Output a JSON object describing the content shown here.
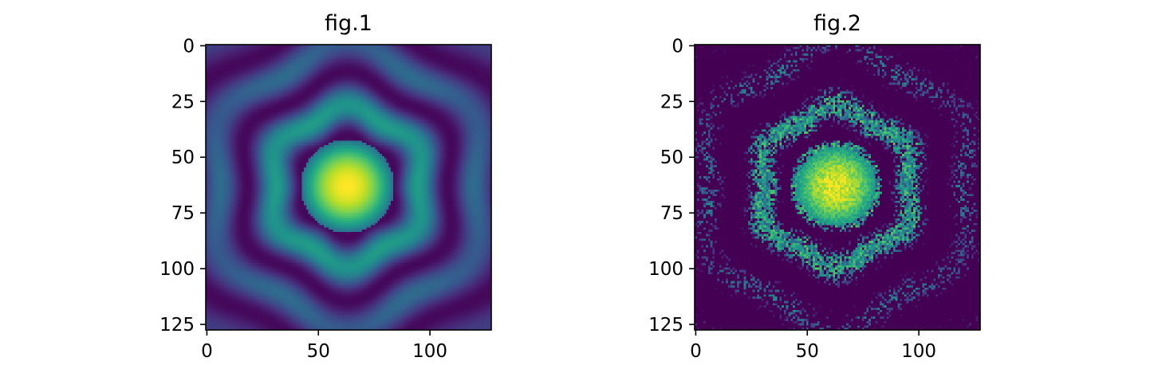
{
  "chart_data": [
    {
      "type": "heatmap",
      "title": "fig.1",
      "colormap": "viridis",
      "image_size": [
        128,
        128
      ],
      "xlim": [
        -0.5,
        127.5
      ],
      "ylim": [
        127.5,
        -0.5
      ],
      "y_inverted": true,
      "xticks": [
        0,
        50,
        100
      ],
      "xtick_labels": [
        "0",
        "50",
        "100"
      ],
      "yticks": [
        0,
        25,
        50,
        75,
        100,
        125
      ],
      "ytick_labels": [
        "0",
        "25",
        "50",
        "75",
        "100",
        "125"
      ],
      "center": [
        63,
        63
      ],
      "central_spot_radius": 21,
      "noise": false
    },
    {
      "type": "heatmap",
      "title": "fig.2",
      "colormap": "viridis",
      "image_size": [
        128,
        128
      ],
      "xlim": [
        -0.5,
        127.5
      ],
      "ylim": [
        127.5,
        -0.5
      ],
      "y_inverted": true,
      "xticks": [
        0,
        50,
        100
      ],
      "xtick_labels": [
        "0",
        "50",
        "100"
      ],
      "yticks": [
        0,
        25,
        50,
        75,
        100,
        125
      ],
      "ytick_labels": [
        "0",
        "25",
        "50",
        "75",
        "100",
        "125"
      ],
      "center": [
        63,
        63
      ],
      "central_spot_radius": 21,
      "noise": true
    }
  ]
}
